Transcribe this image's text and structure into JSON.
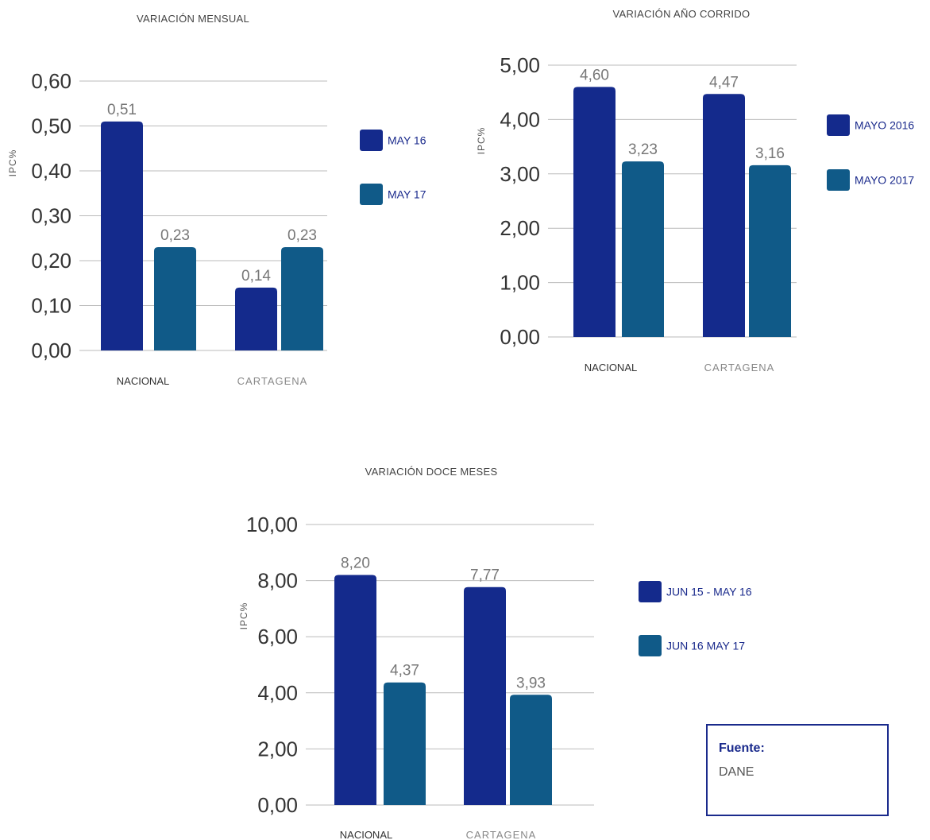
{
  "colors": {
    "series1": "#142a8c",
    "series2": "#105a88",
    "label": "#777777",
    "text": "#333333",
    "grid": "#bbbbbb"
  },
  "chart_data": [
    {
      "type": "bar",
      "title": "VARIACIÓN MENSUAL",
      "ylabel": "IPC%",
      "categories": [
        "NACIONAL",
        "CARTAGENA"
      ],
      "ylim": [
        0,
        0.6
      ],
      "yticks": [
        "0,00",
        "0,10",
        "0,20",
        "0,30",
        "0,40",
        "0,50",
        "0,60"
      ],
      "series": [
        {
          "name": "MAY 16",
          "values": [
            0.51,
            0.14
          ],
          "labels": [
            "0,51",
            "0,14"
          ]
        },
        {
          "name": "MAY 17",
          "values": [
            0.23,
            0.23
          ],
          "labels": [
            "0,23",
            "0,23"
          ]
        }
      ],
      "legend": "right",
      "grid": true
    },
    {
      "type": "bar",
      "title": "VARIACIÓN AÑO CORRIDO",
      "ylabel": "IPC%",
      "categories": [
        "NACIONAL",
        "CARTAGENA"
      ],
      "ylim": [
        0,
        5
      ],
      "yticks": [
        "0,00",
        "1,00",
        "2,00",
        "3,00",
        "4,00",
        "5,00"
      ],
      "series": [
        {
          "name": "MAYO 2016",
          "values": [
            4.6,
            4.47
          ],
          "labels": [
            "4,60",
            "4,47"
          ]
        },
        {
          "name": "MAYO 2017",
          "values": [
            3.23,
            3.16
          ],
          "labels": [
            "3,23",
            "3,16"
          ]
        }
      ],
      "legend": "right",
      "grid": true
    },
    {
      "type": "bar",
      "title": "VARIACIÓN DOCE MESES",
      "ylabel": "IPC%",
      "categories": [
        "NACIONAL",
        "CARTAGENA"
      ],
      "ylim": [
        0,
        10
      ],
      "yticks": [
        "0,00",
        "2,00",
        "4,00",
        "6,00",
        "8,00",
        "10,00"
      ],
      "series": [
        {
          "name": "JUN 15 - MAY 16",
          "values": [
            8.2,
            7.77
          ],
          "labels": [
            "8,20",
            "7,77"
          ]
        },
        {
          "name": "JUN 16 MAY 17",
          "values": [
            4.37,
            3.93
          ],
          "labels": [
            "4,37",
            "3,93"
          ]
        }
      ],
      "legend": "right",
      "grid": true
    }
  ],
  "source": {
    "label": "Fuente:",
    "value": "DANE"
  }
}
